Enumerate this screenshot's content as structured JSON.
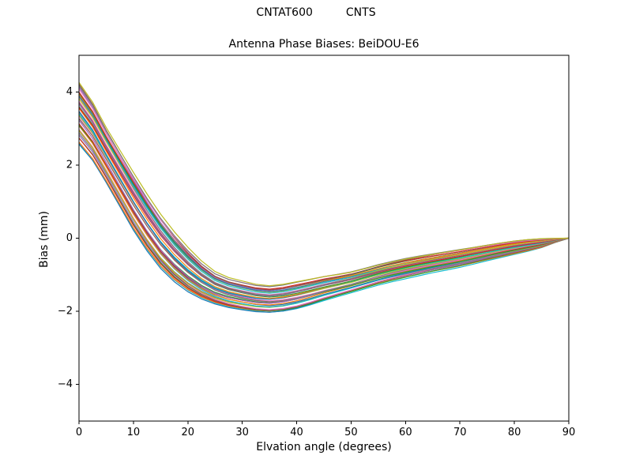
{
  "header": {
    "station": "CNTAT600",
    "agency": "CNTS"
  },
  "chart_data": {
    "type": "line",
    "title": "Antenna Phase Biases: BeiDOU-E6",
    "xlabel": "Elvation angle (degrees)",
    "ylabel": "Bias (mm)",
    "xlim": [
      0,
      90
    ],
    "ylim": [
      -5,
      5
    ],
    "xticks": [
      0,
      10,
      20,
      30,
      40,
      50,
      60,
      70,
      80,
      90
    ],
    "yticks": [
      -4,
      -2,
      0,
      2,
      4
    ],
    "grid": false,
    "legend": null,
    "n_lines": 40,
    "x": [
      0,
      5,
      10,
      15,
      20,
      25,
      30,
      35,
      40,
      45,
      50,
      55,
      60,
      65,
      70,
      75,
      80,
      85,
      90
    ],
    "band_top": [
      4.25,
      3.0,
      1.75,
      0.6,
      -0.3,
      -0.95,
      -1.2,
      -1.32,
      -1.2,
      -1.05,
      -0.92,
      -0.72,
      -0.55,
      -0.42,
      -0.3,
      -0.18,
      -0.07,
      -0.01,
      0.0
    ],
    "band_bottom": [
      2.6,
      1.55,
      0.25,
      -0.8,
      -1.45,
      -1.8,
      -1.97,
      -2.05,
      -1.95,
      -1.72,
      -1.5,
      -1.28,
      -1.1,
      -0.93,
      -0.78,
      -0.6,
      -0.43,
      -0.25,
      0.0
    ],
    "colors": [
      "#1f77b4",
      "#ff7f0e",
      "#2ca02c",
      "#d62728",
      "#9467bd",
      "#8c564b",
      "#e377c2",
      "#7f7f7f",
      "#bcbd22",
      "#17becf"
    ],
    "axis_color": "#000000",
    "background": "#ffffff"
  }
}
